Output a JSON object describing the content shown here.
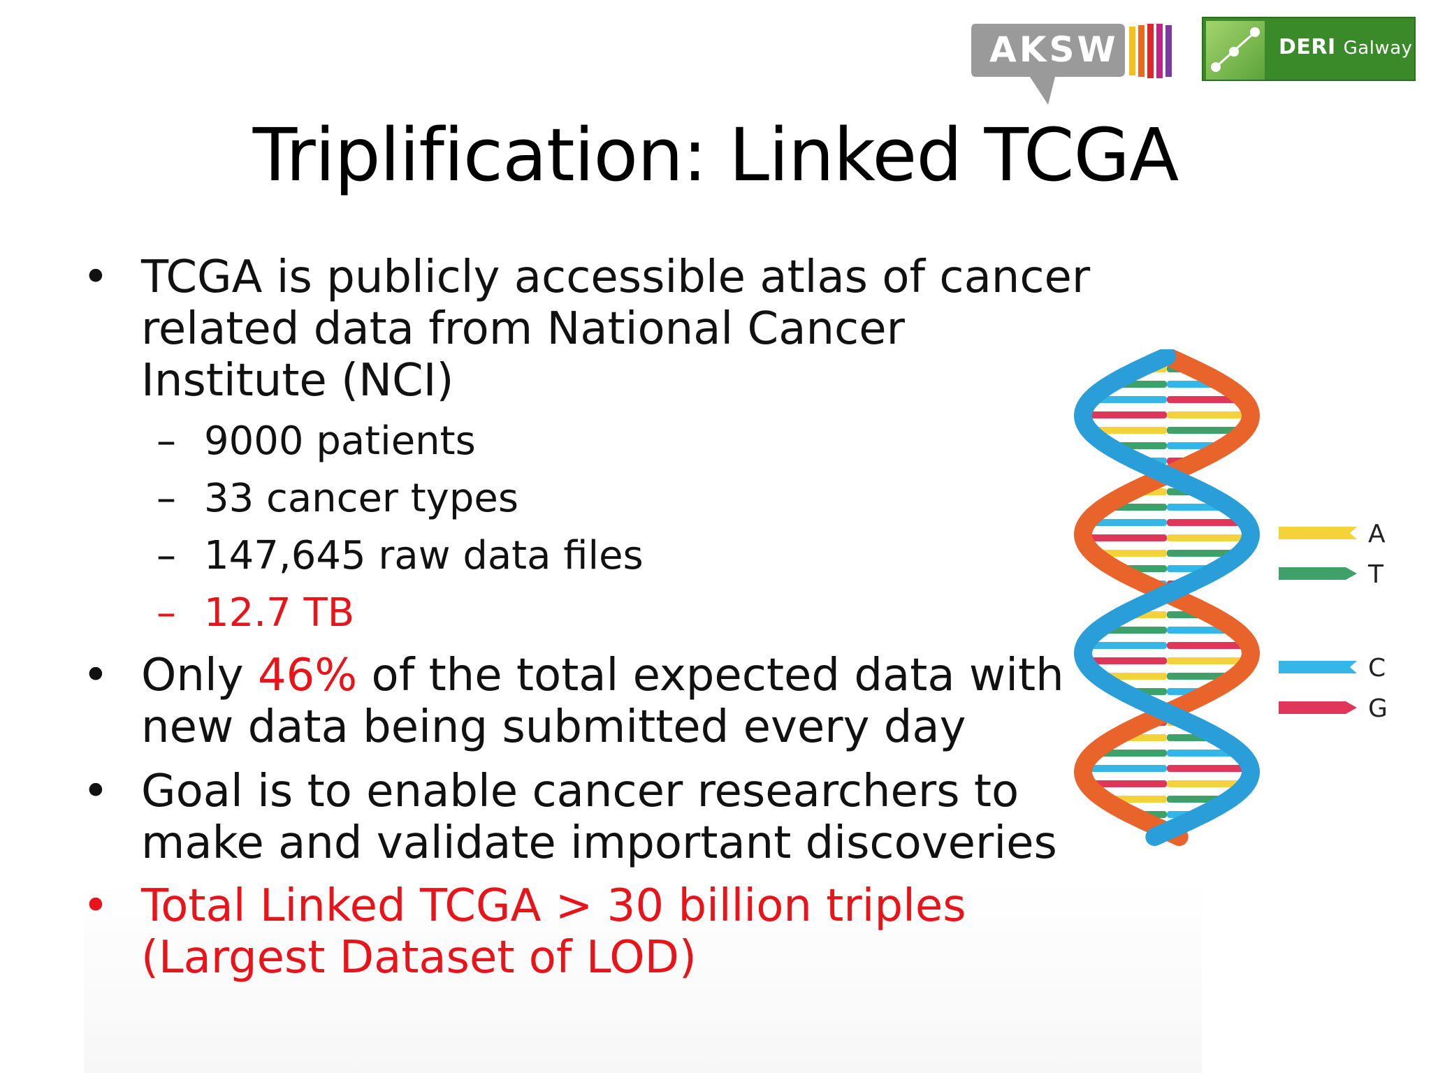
{
  "logos": {
    "aksw": "AKSW",
    "deri_bold": "DERI",
    "deri_light": "Galway"
  },
  "title": "Triplification: Linked TCGA",
  "bullets": [
    {
      "text": " TCGA is  publicly accessible atlas of cancer related data from National Cancer Institute (NCI)"
    },
    {
      "pre": "Only ",
      "highlight": "46%",
      "post": " of the total expected data with new data being  submitted every day"
    },
    {
      "text": "Goal is to enable cancer researchers to make and validate important discoveries"
    },
    {
      "text": "Total  Linked TCGA  > 30  billion triples (Largest Dataset of LOD)"
    }
  ],
  "sub_bullets": [
    {
      "text": "9000 patients"
    },
    {
      "text": "33 cancer types"
    },
    {
      "text": "147,645 raw data files"
    },
    {
      "text": "12.7 TB"
    }
  ],
  "bullet_glyph": "•",
  "dash_glyph": "–",
  "dna_legend": [
    "A",
    "T",
    "C",
    "G"
  ],
  "colors": {
    "highlight_red": "#e8141a",
    "base_A": "#f4d23a",
    "base_T": "#3fa06a",
    "base_C": "#35b6e6",
    "base_G": "#e0365a",
    "strand_orange": "#e8642a",
    "strand_blue": "#2a9ed8"
  }
}
